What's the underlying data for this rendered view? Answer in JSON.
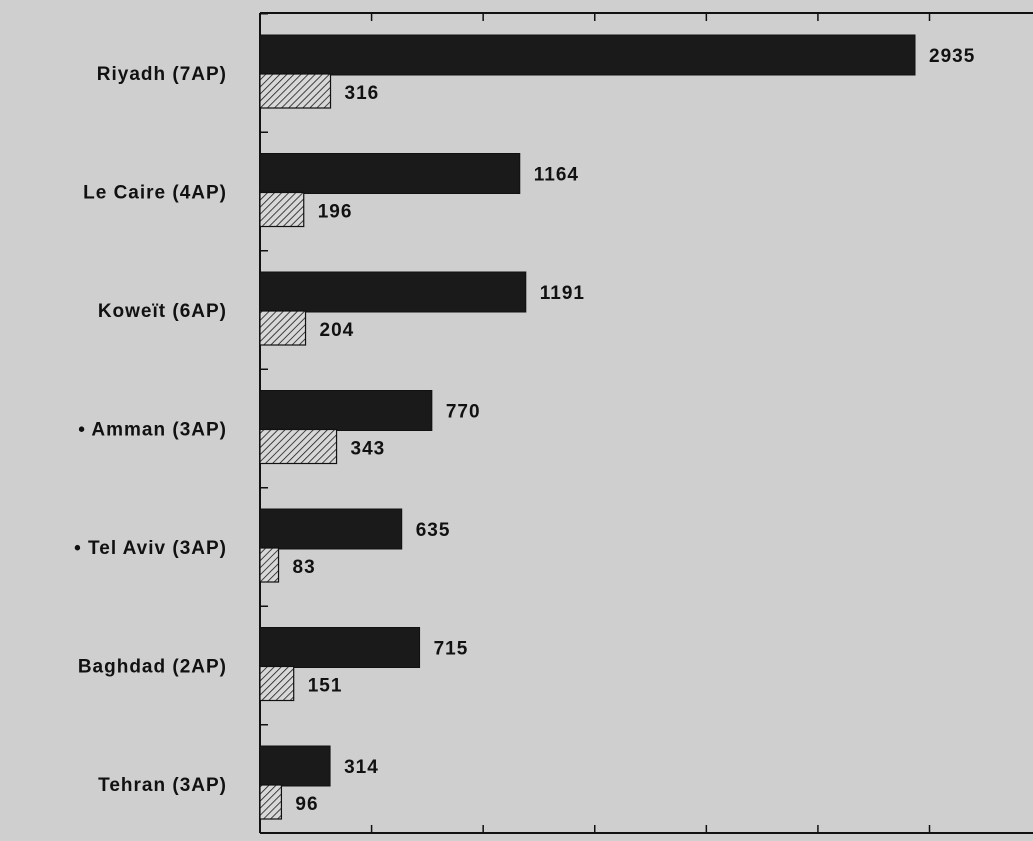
{
  "chart_data": {
    "type": "bar",
    "orientation": "horizontal",
    "categories": [
      "Riyadh (7AP)",
      "Le Caire (4AP)",
      "Koweït (6AP)",
      "• Amman (3AP)",
      "• Tel Aviv (3AP)",
      "Baghdad (2AP)",
      "Tehran (3AP)"
    ],
    "series": [
      {
        "values": [
          2935,
          1164,
          1191,
          770,
          635,
          715,
          314
        ],
        "color": "#1a1a1a",
        "pattern": "solid"
      },
      {
        "values": [
          316,
          196,
          204,
          343,
          83,
          151,
          96
        ],
        "color": "#1a1a1a",
        "pattern": "hatched"
      }
    ],
    "title": "",
    "xlabel": "",
    "ylabel": "",
    "xlim": [
      0,
      3500
    ],
    "x_tick_step": 500,
    "grid": false,
    "legend": "none"
  }
}
